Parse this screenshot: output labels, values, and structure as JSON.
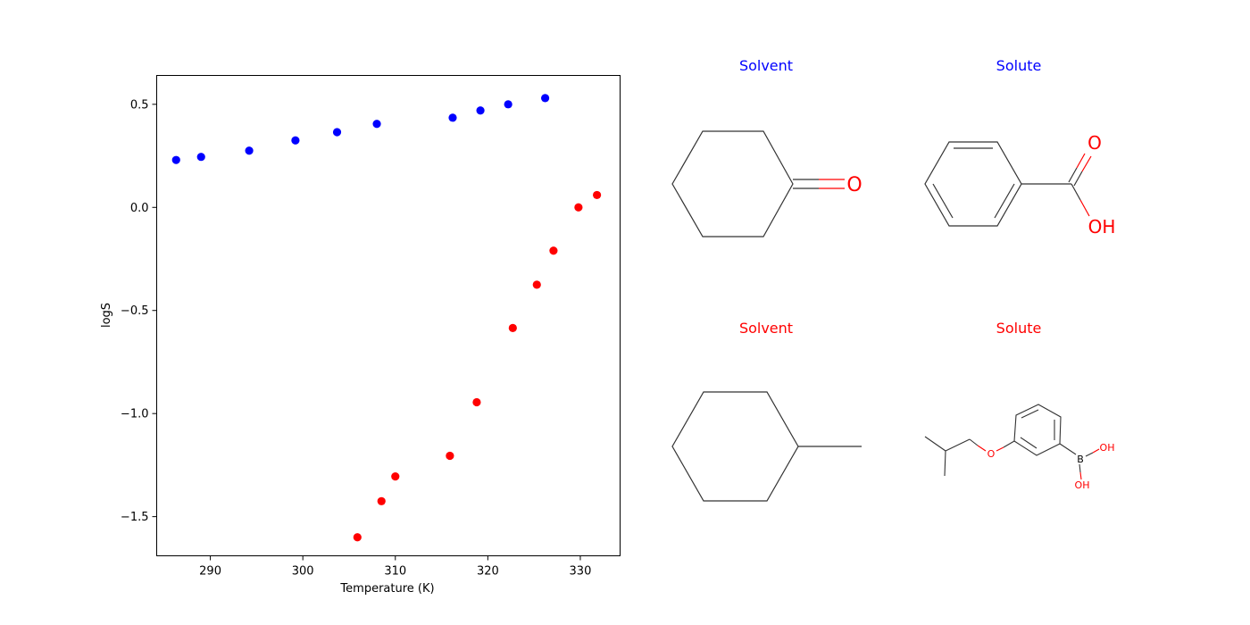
{
  "chart_data": {
    "type": "scatter",
    "xlabel": "Temperature (K)",
    "ylabel": "logS",
    "xlim": [
      284.2,
      334.3
    ],
    "ylim": [
      -1.69,
      0.64
    ],
    "xticks": [
      290,
      300,
      310,
      320,
      330
    ],
    "yticks": [
      0.5,
      0.0,
      -0.5,
      -1.0,
      -1.5
    ],
    "ytick_labels": [
      "0.5",
      "0.0",
      "−0.5",
      "−1.0",
      "−1.5"
    ],
    "grid": false,
    "series": [
      {
        "color": "#0000ff",
        "points": [
          {
            "x": 286.3,
            "y": 0.23
          },
          {
            "x": 289.0,
            "y": 0.245
          },
          {
            "x": 294.2,
            "y": 0.275
          },
          {
            "x": 299.2,
            "y": 0.325
          },
          {
            "x": 303.7,
            "y": 0.365
          },
          {
            "x": 308.0,
            "y": 0.405
          },
          {
            "x": 316.2,
            "y": 0.435
          },
          {
            "x": 319.2,
            "y": 0.47
          },
          {
            "x": 322.2,
            "y": 0.5
          },
          {
            "x": 326.2,
            "y": 0.53
          }
        ]
      },
      {
        "color": "#ff0000",
        "points": [
          {
            "x": 305.9,
            "y": -1.6
          },
          {
            "x": 308.5,
            "y": -1.425
          },
          {
            "x": 310.0,
            "y": -1.305
          },
          {
            "x": 315.9,
            "y": -1.205
          },
          {
            "x": 318.8,
            "y": -0.945
          },
          {
            "x": 322.7,
            "y": -0.585
          },
          {
            "x": 325.3,
            "y": -0.375
          },
          {
            "x": 327.1,
            "y": -0.21
          },
          {
            "x": 329.8,
            "y": 0.0
          },
          {
            "x": 331.8,
            "y": 0.06
          }
        ]
      }
    ]
  },
  "structures": {
    "pair1": {
      "color": "#0000ff",
      "solvent_title": "Solvent",
      "solute_title": "Solute",
      "solvent_atoms": [
        "O"
      ],
      "solute_atoms": [
        "O",
        "OH"
      ]
    },
    "pair2": {
      "color": "#ff0000",
      "solvent_title": "Solvent",
      "solute_title": "Solute",
      "solvent_atoms": [],
      "solute_atoms": [
        "O",
        "B",
        "OH",
        "OH"
      ]
    }
  }
}
